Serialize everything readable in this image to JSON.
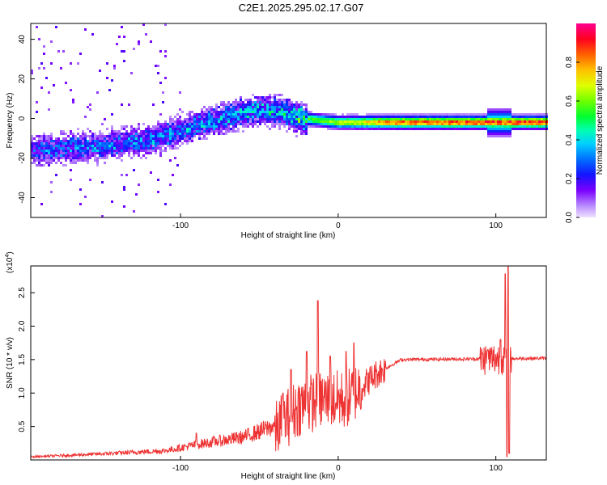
{
  "title": "C2E1.2025.295.02.17.G07",
  "chart_data": [
    {
      "type": "heatmap",
      "name": "spectrogram",
      "xlabel": "Height of straight line (km)",
      "ylabel": "Frequency (Hz)",
      "xlim": [
        -195,
        132
      ],
      "ylim": [
        -50,
        48
      ],
      "xticks": [
        -100,
        0,
        100
      ],
      "xtick_labels": [
        "-100",
        "0",
        "100"
      ],
      "yticks": [
        -40,
        -20,
        0,
        20,
        40
      ],
      "ytick_labels": [
        "-40",
        "-20",
        "0",
        "20",
        "40"
      ],
      "colorbar": {
        "label": "Normalized spectral amplitude",
        "range": [
          0.0,
          1.0
        ],
        "ticks": [
          0.0,
          0.2,
          0.4,
          0.6,
          0.8
        ],
        "tick_labels": [
          "0.0",
          "0.2",
          "0.4",
          "0.6",
          "0.8"
        ]
      },
      "ridge": {
        "description_points_km_hz": [
          [
            -195,
            -16
          ],
          [
            -150,
            -14
          ],
          [
            -120,
            -11
          ],
          [
            -90,
            -4
          ],
          [
            -60,
            3
          ],
          [
            -40,
            4
          ],
          [
            -22,
            0
          ],
          [
            0,
            -2
          ],
          [
            130,
            -2
          ]
        ],
        "amplitude_by_height": [
          [
            -195,
            0.3
          ],
          [
            -100,
            0.35
          ],
          [
            -40,
            0.4
          ],
          [
            -20,
            0.55
          ],
          [
            10,
            0.7
          ],
          [
            40,
            0.85
          ],
          [
            130,
            0.9
          ]
        ]
      }
    },
    {
      "type": "line",
      "name": "snr",
      "xlabel": "Height of straight line (km)",
      "ylabel": "SNR (10 * v/v)",
      "y_multiplier_label": "(x10",
      "y_multiplier_exp": "4",
      "y_multiplier_close": ")",
      "xlim": [
        -195,
        132
      ],
      "ylim": [
        0,
        2.9
      ],
      "xticks": [
        -100,
        0,
        100
      ],
      "xtick_labels": [
        "-100",
        "0",
        "100"
      ],
      "yticks": [
        0.5,
        1.0,
        1.5,
        2.0,
        2.5
      ],
      "ytick_labels": [
        "0.5",
        "1.0",
        "1.5",
        "2.0",
        "2.5"
      ],
      "color": "#ee3333",
      "envelope_km": [
        [
          -195,
          0.04
        ],
        [
          -150,
          0.08
        ],
        [
          -110,
          0.12
        ],
        [
          -90,
          0.2
        ],
        [
          -60,
          0.3
        ],
        [
          -40,
          0.45
        ],
        [
          -25,
          0.8
        ],
        [
          -10,
          0.9
        ],
        [
          5,
          0.9
        ],
        [
          15,
          1.1
        ],
        [
          25,
          1.3
        ],
        [
          40,
          1.5
        ],
        [
          130,
          1.52
        ]
      ],
      "spikes_km": [
        [
          -90,
          0.4
        ],
        [
          -35,
          1.0
        ],
        [
          -30,
          1.35
        ],
        [
          -20,
          1.62
        ],
        [
          -13,
          2.38
        ],
        [
          -5,
          1.55
        ],
        [
          5,
          1.62
        ],
        [
          10,
          1.75
        ],
        [
          95,
          1.65
        ],
        [
          103,
          1.8
        ],
        [
          106,
          2.78
        ],
        [
          108,
          2.9
        ],
        [
          108.5,
          0.1
        ],
        [
          107,
          0.05
        ]
      ]
    }
  ]
}
